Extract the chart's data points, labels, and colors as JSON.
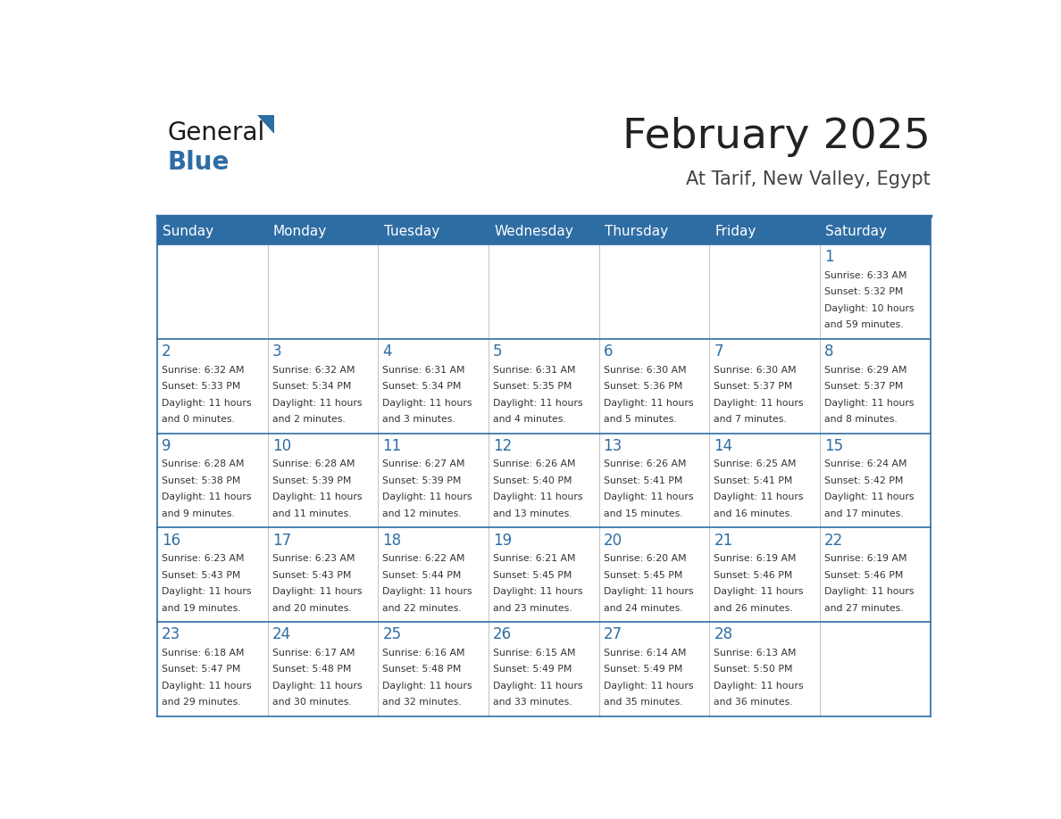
{
  "title": "February 2025",
  "subtitle": "At Tarif, New Valley, Egypt",
  "header_bg": "#2E6DA4",
  "header_text": "#FFFFFF",
  "border_color": "#2E6DA4",
  "day_headers": [
    "Sunday",
    "Monday",
    "Tuesday",
    "Wednesday",
    "Thursday",
    "Friday",
    "Saturday"
  ],
  "title_color": "#222222",
  "subtitle_color": "#444444",
  "day_num_color": "#2E6DA4",
  "cell_text_color": "#333333",
  "calendar": [
    [
      null,
      null,
      null,
      null,
      null,
      null,
      {
        "day": 1,
        "sunrise": "6:33 AM",
        "sunset": "5:32 PM",
        "daylight": "10 hours and 59 minutes."
      }
    ],
    [
      {
        "day": 2,
        "sunrise": "6:32 AM",
        "sunset": "5:33 PM",
        "daylight": "11 hours and 0 minutes."
      },
      {
        "day": 3,
        "sunrise": "6:32 AM",
        "sunset": "5:34 PM",
        "daylight": "11 hours and 2 minutes."
      },
      {
        "day": 4,
        "sunrise": "6:31 AM",
        "sunset": "5:34 PM",
        "daylight": "11 hours and 3 minutes."
      },
      {
        "day": 5,
        "sunrise": "6:31 AM",
        "sunset": "5:35 PM",
        "daylight": "11 hours and 4 minutes."
      },
      {
        "day": 6,
        "sunrise": "6:30 AM",
        "sunset": "5:36 PM",
        "daylight": "11 hours and 5 minutes."
      },
      {
        "day": 7,
        "sunrise": "6:30 AM",
        "sunset": "5:37 PM",
        "daylight": "11 hours and 7 minutes."
      },
      {
        "day": 8,
        "sunrise": "6:29 AM",
        "sunset": "5:37 PM",
        "daylight": "11 hours and 8 minutes."
      }
    ],
    [
      {
        "day": 9,
        "sunrise": "6:28 AM",
        "sunset": "5:38 PM",
        "daylight": "11 hours and 9 minutes."
      },
      {
        "day": 10,
        "sunrise": "6:28 AM",
        "sunset": "5:39 PM",
        "daylight": "11 hours and 11 minutes."
      },
      {
        "day": 11,
        "sunrise": "6:27 AM",
        "sunset": "5:39 PM",
        "daylight": "11 hours and 12 minutes."
      },
      {
        "day": 12,
        "sunrise": "6:26 AM",
        "sunset": "5:40 PM",
        "daylight": "11 hours and 13 minutes."
      },
      {
        "day": 13,
        "sunrise": "6:26 AM",
        "sunset": "5:41 PM",
        "daylight": "11 hours and 15 minutes."
      },
      {
        "day": 14,
        "sunrise": "6:25 AM",
        "sunset": "5:41 PM",
        "daylight": "11 hours and 16 minutes."
      },
      {
        "day": 15,
        "sunrise": "6:24 AM",
        "sunset": "5:42 PM",
        "daylight": "11 hours and 17 minutes."
      }
    ],
    [
      {
        "day": 16,
        "sunrise": "6:23 AM",
        "sunset": "5:43 PM",
        "daylight": "11 hours and 19 minutes."
      },
      {
        "day": 17,
        "sunrise": "6:23 AM",
        "sunset": "5:43 PM",
        "daylight": "11 hours and 20 minutes."
      },
      {
        "day": 18,
        "sunrise": "6:22 AM",
        "sunset": "5:44 PM",
        "daylight": "11 hours and 22 minutes."
      },
      {
        "day": 19,
        "sunrise": "6:21 AM",
        "sunset": "5:45 PM",
        "daylight": "11 hours and 23 minutes."
      },
      {
        "day": 20,
        "sunrise": "6:20 AM",
        "sunset": "5:45 PM",
        "daylight": "11 hours and 24 minutes."
      },
      {
        "day": 21,
        "sunrise": "6:19 AM",
        "sunset": "5:46 PM",
        "daylight": "11 hours and 26 minutes."
      },
      {
        "day": 22,
        "sunrise": "6:19 AM",
        "sunset": "5:46 PM",
        "daylight": "11 hours and 27 minutes."
      }
    ],
    [
      {
        "day": 23,
        "sunrise": "6:18 AM",
        "sunset": "5:47 PM",
        "daylight": "11 hours and 29 minutes."
      },
      {
        "day": 24,
        "sunrise": "6:17 AM",
        "sunset": "5:48 PM",
        "daylight": "11 hours and 30 minutes."
      },
      {
        "day": 25,
        "sunrise": "6:16 AM",
        "sunset": "5:48 PM",
        "daylight": "11 hours and 32 minutes."
      },
      {
        "day": 26,
        "sunrise": "6:15 AM",
        "sunset": "5:49 PM",
        "daylight": "11 hours and 33 minutes."
      },
      {
        "day": 27,
        "sunrise": "6:14 AM",
        "sunset": "5:49 PM",
        "daylight": "11 hours and 35 minutes."
      },
      {
        "day": 28,
        "sunrise": "6:13 AM",
        "sunset": "5:50 PM",
        "daylight": "11 hours and 36 minutes."
      },
      null
    ]
  ]
}
